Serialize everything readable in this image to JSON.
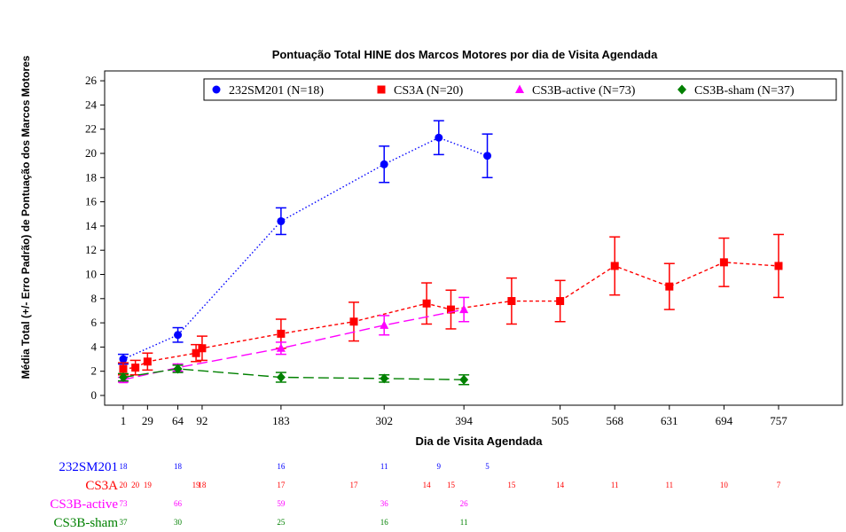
{
  "chart_data": {
    "type": "line",
    "title": "Pontuação Total HINE  dos Marcos Motores por dia de Visita Agendada",
    "xlabel": "Dia de Visita Agendada",
    "ylabel": "Média Total (+/- Erro Padrão) de Pontuação dos Marcos Motores",
    "xlim": [
      -20,
      770
    ],
    "ylim": [
      -1,
      26.5
    ],
    "yticks": [
      "0",
      "2",
      "4",
      "6",
      "8",
      "10",
      "12",
      "14",
      "16",
      "18",
      "20",
      "22",
      "24",
      "26"
    ],
    "xticks": [
      "1",
      "29",
      "64",
      "92",
      "183",
      "302",
      "394",
      "505",
      "568",
      "631",
      "694",
      "757"
    ],
    "legend_position": "top-right",
    "series": [
      {
        "name": "232SM201 (N=18)",
        "color": "#0000ff",
        "marker": "circle",
        "line": "dotted",
        "x": [
          1,
          64,
          183,
          302,
          365,
          421
        ],
        "y": [
          3.0,
          5.0,
          14.4,
          19.1,
          21.3,
          19.8
        ],
        "err": [
          0.4,
          0.6,
          1.1,
          1.5,
          1.4,
          1.8
        ]
      },
      {
        "name": "CS3A (N=20)",
        "color": "#ff0000",
        "marker": "square",
        "line": "dashed",
        "x": [
          1,
          15,
          29,
          85,
          92,
          183,
          267,
          351,
          379,
          449,
          505,
          568,
          631,
          694,
          757
        ],
        "y": [
          2.2,
          2.3,
          2.8,
          3.5,
          3.9,
          5.1,
          6.1,
          7.6,
          7.1,
          7.8,
          7.8,
          10.7,
          9.0,
          11.0,
          10.7
        ],
        "err": [
          0.5,
          0.6,
          0.7,
          0.7,
          1.0,
          1.2,
          1.6,
          1.7,
          1.6,
          1.9,
          1.7,
          2.4,
          1.9,
          2.0,
          2.6
        ]
      },
      {
        "name": "CS3B-active (N=73)",
        "color": "#ff00ff",
        "marker": "triangle",
        "line": "long-dash",
        "x": [
          1,
          64,
          183,
          302,
          394
        ],
        "y": [
          1.3,
          2.3,
          3.9,
          5.8,
          7.1
        ],
        "err": [
          0.2,
          0.3,
          0.5,
          0.8,
          1.0
        ]
      },
      {
        "name": "CS3B-sham (N=37)",
        "color": "#008000",
        "marker": "diamond",
        "line": "long-dash",
        "x": [
          1,
          64,
          183,
          302,
          394
        ],
        "y": [
          1.5,
          2.2,
          1.5,
          1.4,
          1.3
        ],
        "err": [
          0.3,
          0.3,
          0.4,
          0.3,
          0.4
        ]
      }
    ],
    "at_risk": [
      {
        "label": "232SM201",
        "color": "#0000ff",
        "x": [
          1,
          64,
          183,
          302,
          365,
          421
        ],
        "values": [
          "18",
          "18",
          "16",
          "11",
          "9",
          "5"
        ]
      },
      {
        "label": "CS3A",
        "color": "#ff0000",
        "x": [
          1,
          15,
          29,
          85,
          92,
          183,
          267,
          351,
          379,
          449,
          505,
          568,
          631,
          694,
          757
        ],
        "values": [
          "20",
          "20",
          "19",
          "19",
          "18",
          "17",
          "17",
          "14",
          "15",
          "15",
          "14",
          "11",
          "11",
          "10",
          "7"
        ]
      },
      {
        "label": "CS3B-active",
        "color": "#ff00ff",
        "x": [
          1,
          64,
          183,
          302,
          394
        ],
        "values": [
          "73",
          "66",
          "59",
          "36",
          "26"
        ]
      },
      {
        "label": "CS3B-sham",
        "color": "#008000",
        "x": [
          1,
          64,
          183,
          302,
          394
        ],
        "values": [
          "37",
          "30",
          "25",
          "16",
          "11"
        ]
      }
    ]
  }
}
